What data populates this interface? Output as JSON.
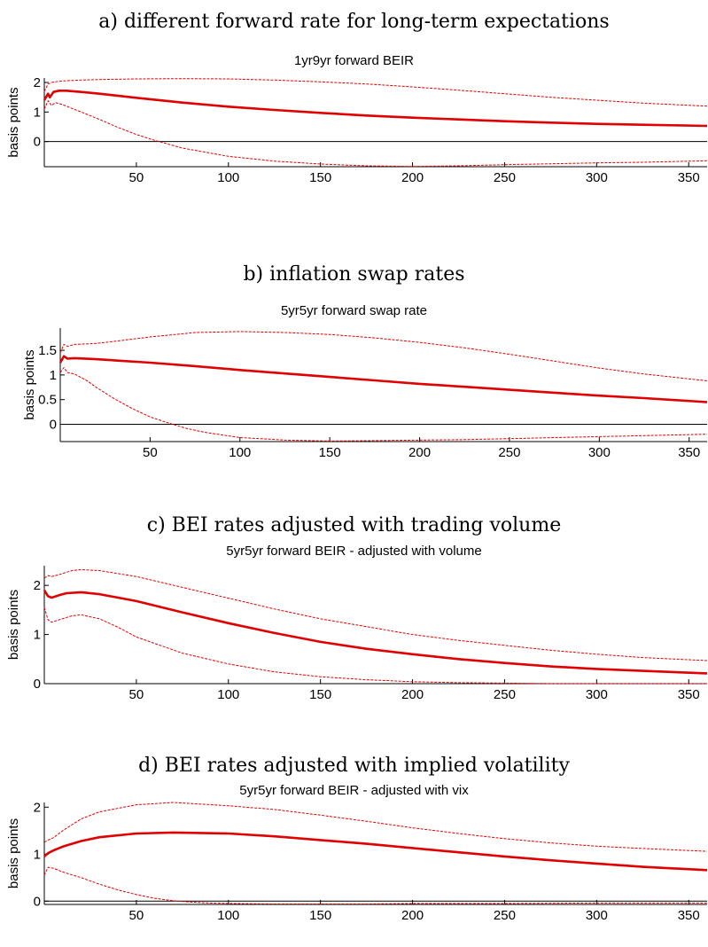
{
  "chart_data": [
    {
      "type": "line",
      "panel_heading": "a) different forward rate for long-term expectations",
      "title": "1yr9yr forward BEIR",
      "ylabel": "basis points",
      "xlabel": "",
      "xlim": [
        0,
        360
      ],
      "ylim": [
        -0.85,
        2.15
      ],
      "xticks": [
        50,
        100,
        150,
        200,
        250,
        300,
        350
      ],
      "yticks": [
        0,
        1,
        2
      ],
      "zero_line": true,
      "colors": {
        "response": "#e00000",
        "band": "#e00000",
        "axis": "#000000"
      },
      "series": [
        {
          "role": "response",
          "x": [
            0,
            2,
            3,
            5,
            8,
            12,
            20,
            30,
            50,
            75,
            100,
            125,
            150,
            175,
            200,
            225,
            250,
            275,
            300,
            325,
            360
          ],
          "values": [
            1.4,
            1.62,
            1.5,
            1.68,
            1.72,
            1.72,
            1.68,
            1.62,
            1.48,
            1.32,
            1.18,
            1.07,
            0.97,
            0.88,
            0.81,
            0.75,
            0.69,
            0.64,
            0.6,
            0.57,
            0.53
          ]
        },
        {
          "role": "upper-band",
          "x": [
            0,
            2,
            4,
            6,
            10,
            20,
            30,
            50,
            75,
            100,
            125,
            150,
            175,
            200,
            225,
            250,
            275,
            300,
            325,
            360
          ],
          "values": [
            1.7,
            1.95,
            2.0,
            2.02,
            2.05,
            2.08,
            2.1,
            2.12,
            2.13,
            2.12,
            2.08,
            2.02,
            1.95,
            1.85,
            1.74,
            1.62,
            1.5,
            1.4,
            1.3,
            1.2
          ]
        },
        {
          "role": "lower-band",
          "x": [
            0,
            2,
            4,
            6,
            10,
            15,
            20,
            30,
            40,
            50,
            60,
            75,
            100,
            125,
            150,
            175,
            200,
            225,
            250,
            275,
            300,
            325,
            360
          ],
          "values": [
            1.1,
            1.38,
            1.22,
            1.32,
            1.25,
            1.12,
            1.0,
            0.75,
            0.48,
            0.24,
            0.04,
            -0.22,
            -0.5,
            -0.66,
            -0.76,
            -0.82,
            -0.84,
            -0.82,
            -0.78,
            -0.75,
            -0.72,
            -0.7,
            -0.65
          ]
        }
      ]
    },
    {
      "type": "line",
      "panel_heading": "b) inflation swap rates",
      "title": "5yr5yr forward swap rate",
      "ylabel": "basis points",
      "xlabel": "",
      "xlim": [
        0,
        360
      ],
      "ylim": [
        -0.35,
        1.95
      ],
      "xticks": [
        50,
        100,
        150,
        200,
        250,
        300,
        350
      ],
      "yticks": [
        0,
        0.5,
        1,
        1.5
      ],
      "ytick_labels": [
        "0",
        "0.5",
        "1",
        "1.5"
      ],
      "zero_line": true,
      "colors": {
        "response": "#e00000",
        "band": "#e00000",
        "axis": "#000000"
      },
      "series": [
        {
          "role": "response",
          "x": [
            0,
            2,
            4,
            8,
            20,
            50,
            75,
            100,
            125,
            150,
            175,
            200,
            225,
            250,
            275,
            300,
            325,
            360
          ],
          "values": [
            1.25,
            1.38,
            1.33,
            1.34,
            1.32,
            1.25,
            1.18,
            1.1,
            1.03,
            0.96,
            0.89,
            0.82,
            0.76,
            0.7,
            0.64,
            0.58,
            0.53,
            0.45
          ]
        },
        {
          "role": "upper-band",
          "x": [
            0,
            2,
            4,
            8,
            20,
            30,
            50,
            75,
            100,
            125,
            150,
            175,
            200,
            225,
            250,
            275,
            300,
            325,
            360
          ],
          "values": [
            1.45,
            1.62,
            1.58,
            1.62,
            1.64,
            1.68,
            1.77,
            1.86,
            1.88,
            1.86,
            1.82,
            1.75,
            1.66,
            1.55,
            1.42,
            1.28,
            1.14,
            1.02,
            0.88
          ]
        },
        {
          "role": "lower-band",
          "x": [
            0,
            2,
            4,
            8,
            15,
            20,
            30,
            40,
            50,
            60,
            70,
            80,
            100,
            125,
            150,
            175,
            200,
            225,
            250,
            275,
            300,
            325,
            360
          ],
          "values": [
            1.05,
            1.15,
            1.05,
            1.02,
            0.88,
            0.75,
            0.52,
            0.32,
            0.15,
            0.03,
            -0.08,
            -0.16,
            -0.27,
            -0.32,
            -0.34,
            -0.33,
            -0.32,
            -0.31,
            -0.29,
            -0.27,
            -0.25,
            -0.23,
            -0.2
          ]
        }
      ]
    },
    {
      "type": "line",
      "panel_heading": "c) BEI rates adjusted with trading volume",
      "title": "5yr5yr forward BEIR - adjusted with volume",
      "ylabel": "basis points",
      "xlabel": "",
      "xlim": [
        0,
        360
      ],
      "ylim": [
        0,
        2.4
      ],
      "xticks": [
        50,
        100,
        150,
        200,
        250,
        300,
        350
      ],
      "yticks": [
        0,
        1,
        2
      ],
      "zero_line": false,
      "colors": {
        "response": "#e00000",
        "band": "#e00000",
        "axis": "#000000"
      },
      "series": [
        {
          "role": "response",
          "x": [
            0,
            2,
            4,
            8,
            12,
            20,
            30,
            50,
            75,
            100,
            125,
            150,
            175,
            200,
            225,
            250,
            275,
            300,
            325,
            360
          ],
          "values": [
            1.9,
            1.78,
            1.75,
            1.8,
            1.84,
            1.86,
            1.82,
            1.68,
            1.45,
            1.23,
            1.03,
            0.85,
            0.71,
            0.6,
            0.5,
            0.42,
            0.35,
            0.3,
            0.26,
            0.21
          ]
        },
        {
          "role": "upper-band",
          "x": [
            0,
            2,
            4,
            8,
            15,
            20,
            30,
            50,
            75,
            100,
            125,
            150,
            175,
            200,
            225,
            250,
            275,
            300,
            325,
            360
          ],
          "values": [
            2.15,
            2.2,
            2.18,
            2.22,
            2.3,
            2.32,
            2.3,
            2.18,
            1.96,
            1.74,
            1.52,
            1.32,
            1.16,
            1.0,
            0.88,
            0.78,
            0.68,
            0.6,
            0.53,
            0.47
          ]
        },
        {
          "role": "lower-band",
          "x": [
            0,
            2,
            4,
            8,
            15,
            20,
            30,
            40,
            50,
            75,
            100,
            125,
            150,
            175,
            200,
            225,
            250,
            275,
            300,
            325,
            360
          ],
          "values": [
            1.55,
            1.3,
            1.25,
            1.3,
            1.38,
            1.4,
            1.32,
            1.15,
            0.95,
            0.62,
            0.4,
            0.24,
            0.14,
            0.08,
            0.04,
            0.02,
            0.01,
            0.0,
            0.0,
            0.0,
            0.0
          ]
        }
      ]
    },
    {
      "type": "line",
      "panel_heading": "d) BEI rates adjusted with implied volatility",
      "title": "5yr5yr forward BEIR - adjusted with vix",
      "ylabel": "basis points",
      "xlabel": "",
      "xlim": [
        0,
        360
      ],
      "ylim": [
        -0.07,
        2.1
      ],
      "xticks": [
        50,
        100,
        150,
        200,
        250,
        300,
        350
      ],
      "yticks": [
        0,
        1,
        2
      ],
      "zero_line": true,
      "colors": {
        "response": "#e00000",
        "band": "#e00000",
        "axis": "#000000"
      },
      "series": [
        {
          "role": "response",
          "x": [
            0,
            2,
            5,
            10,
            20,
            30,
            50,
            70,
            100,
            125,
            150,
            175,
            200,
            225,
            250,
            275,
            300,
            325,
            360
          ],
          "values": [
            0.95,
            1.02,
            1.08,
            1.16,
            1.28,
            1.36,
            1.44,
            1.46,
            1.44,
            1.38,
            1.3,
            1.22,
            1.13,
            1.04,
            0.95,
            0.87,
            0.8,
            0.73,
            0.66
          ]
        },
        {
          "role": "upper-band",
          "x": [
            0,
            2,
            5,
            10,
            20,
            30,
            50,
            70,
            100,
            125,
            150,
            175,
            200,
            225,
            250,
            275,
            300,
            325,
            360
          ],
          "values": [
            1.25,
            1.3,
            1.35,
            1.5,
            1.75,
            1.9,
            2.05,
            2.1,
            2.03,
            1.95,
            1.83,
            1.7,
            1.56,
            1.44,
            1.33,
            1.24,
            1.17,
            1.12,
            1.06
          ]
        },
        {
          "role": "lower-band",
          "x": [
            0,
            2,
            5,
            10,
            20,
            30,
            40,
            50,
            60,
            70,
            80,
            90,
            100,
            125,
            150,
            175,
            200,
            250,
            300,
            360
          ],
          "values": [
            0.55,
            0.72,
            0.7,
            0.62,
            0.5,
            0.36,
            0.24,
            0.14,
            0.06,
            0.01,
            -0.02,
            -0.04,
            -0.05,
            -0.06,
            -0.06,
            -0.06,
            -0.05,
            -0.05,
            -0.04,
            -0.04
          ]
        }
      ]
    }
  ]
}
